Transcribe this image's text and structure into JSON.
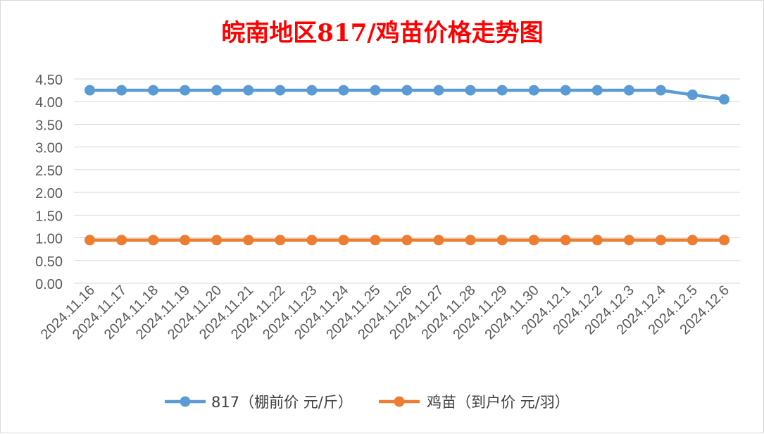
{
  "chart_data": {
    "type": "line",
    "title": "皖南地区817/鸡苗价格走势图",
    "categories": [
      "2024.11.16",
      "2024.11.17",
      "2024.11.18",
      "2024.11.19",
      "2024.11.20",
      "2024.11.21",
      "2024.11.22",
      "2024.11.23",
      "2024.11.24",
      "2024.11.25",
      "2024.11.26",
      "2024.11.27",
      "2024.11.28",
      "2024.11.29",
      "2024.11.30",
      "2024.12.1",
      "2024.12.2",
      "2024.12.3",
      "2024.12.4",
      "2024.12.5",
      "2024.12.6"
    ],
    "series": [
      {
        "name": "817（棚前价 元/斤）",
        "color": "#5b9bd5",
        "values": [
          4.25,
          4.25,
          4.25,
          4.25,
          4.25,
          4.25,
          4.25,
          4.25,
          4.25,
          4.25,
          4.25,
          4.25,
          4.25,
          4.25,
          4.25,
          4.25,
          4.25,
          4.25,
          4.25,
          4.15,
          4.05
        ]
      },
      {
        "name": "鸡苗（到户价 元/羽）",
        "color": "#ed7d31",
        "values": [
          0.95,
          0.95,
          0.95,
          0.95,
          0.95,
          0.95,
          0.95,
          0.95,
          0.95,
          0.95,
          0.95,
          0.95,
          0.95,
          0.95,
          0.95,
          0.95,
          0.95,
          0.95,
          0.95,
          0.95,
          0.95
        ]
      }
    ],
    "ylim": [
      0,
      4.5
    ],
    "yticks": [
      "0.00",
      "0.50",
      "1.00",
      "1.50",
      "2.00",
      "2.50",
      "3.00",
      "3.50",
      "4.00",
      "4.50"
    ],
    "grid": true,
    "legend_position": "bottom",
    "title_color": "#ff0000"
  }
}
